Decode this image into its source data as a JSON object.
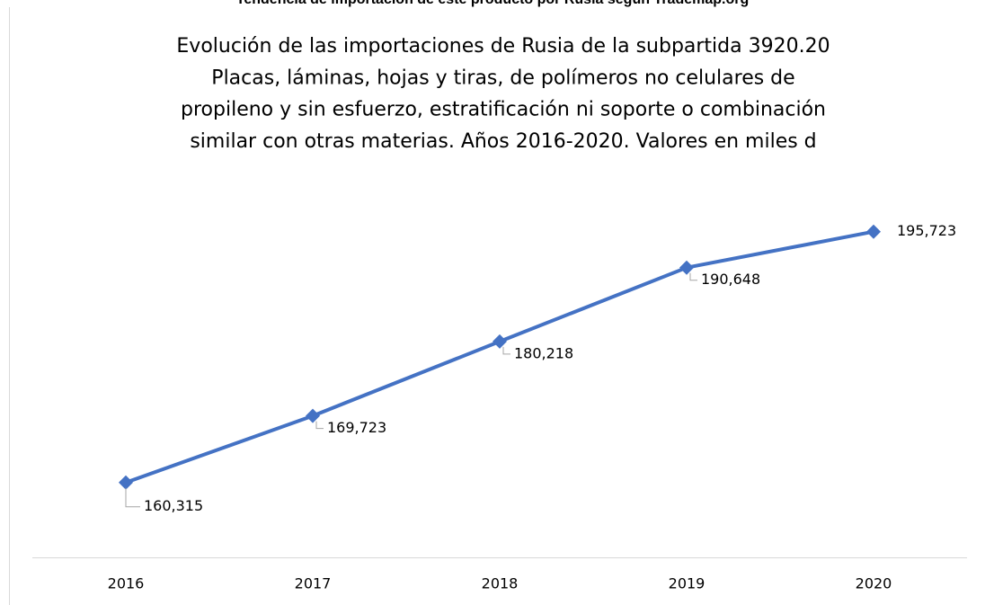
{
  "caption": "Tendencia de importación de este producto por Rusia según Trademap.org",
  "chart_data": {
    "type": "line",
    "title": [
      "Evolución de las importaciones de Rusia de la subpartida 3920.20",
      "Placas, láminas, hojas y tiras, de polímeros no celulares de",
      "propileno y sin esfuerzo, estratificación ni soporte o combinación",
      "similar con otras materias. Años 2016-2020. Valores en miles d"
    ],
    "categories": [
      "2016",
      "2017",
      "2018",
      "2019",
      "2020"
    ],
    "series": [
      {
        "name": "Importaciones",
        "color": "#4472c4",
        "values": [
          160315,
          169723,
          180218,
          190648,
          195723
        ],
        "value_labels": [
          "160,315",
          "169,723",
          "180,218",
          "190,648",
          "195,723"
        ]
      }
    ],
    "ylim": [
      150000,
      200000
    ]
  }
}
